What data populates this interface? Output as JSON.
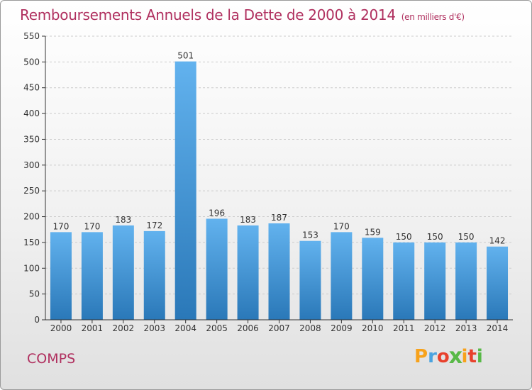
{
  "title": "Remboursements Annuels de la Dette de 2000 à 2014",
  "subtitle": "(en milliers d'€)",
  "commune": "COMPS",
  "logo": {
    "letters": [
      "P",
      "r",
      "o",
      "x",
      "i",
      "t",
      "i"
    ],
    "colors": [
      "#f7a21b",
      "#4aa3df",
      "#e8412c",
      "#58b947",
      "#f7a21b",
      "#e8412c",
      "#58b947"
    ]
  },
  "colors": {
    "title": "#b0305f",
    "bar_top": "#62b2ee",
    "bar_bottom": "#2a78b8",
    "axis": "#333333",
    "grid": "#cccccc"
  },
  "chart_data": {
    "type": "bar",
    "categories": [
      "2000",
      "2001",
      "2002",
      "2003",
      "2004",
      "2005",
      "2006",
      "2007",
      "2008",
      "2009",
      "2010",
      "2011",
      "2012",
      "2013",
      "2014"
    ],
    "values": [
      170,
      170,
      183,
      172,
      501,
      196,
      183,
      187,
      153,
      170,
      159,
      150,
      150,
      150,
      142
    ],
    "data_labels": [
      "170",
      "170",
      "183",
      "172",
      "501",
      "196",
      "183",
      "187",
      "153",
      "170",
      "159",
      "150",
      "150",
      "150",
      "142"
    ],
    "y_ticks": [
      "0",
      "50",
      "100",
      "150",
      "200",
      "250",
      "300",
      "350",
      "400",
      "450",
      "500",
      "550"
    ],
    "ylim": [
      0,
      550
    ],
    "grid": "horizontal dashed",
    "legend": "none"
  }
}
